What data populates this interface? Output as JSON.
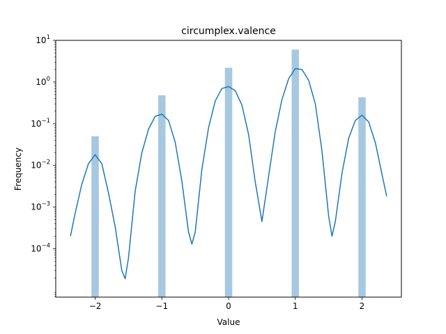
{
  "chart_data": {
    "type": "bar",
    "title": "circumplex.valence",
    "xlabel": "Value",
    "ylabel": "Frequency",
    "yscale": "log",
    "xlim": [
      -2.59,
      2.59
    ],
    "ylim": [
      6.9e-06,
      10
    ],
    "grid": false,
    "x_ticks": [
      -2,
      -1,
      0,
      1,
      2
    ],
    "x_tick_labels": [
      "−2",
      "−1",
      "0",
      "1",
      "2"
    ],
    "y_ticks": [
      {
        "value": 10,
        "base": "10",
        "exp": "1"
      },
      {
        "value": 1,
        "base": "10",
        "exp": "0"
      },
      {
        "value": 0.1,
        "base": "10",
        "exp": "−1"
      },
      {
        "value": 0.01,
        "base": "10",
        "exp": "−2"
      },
      {
        "value": 0.001,
        "base": "10",
        "exp": "−3"
      },
      {
        "value": 0.0001,
        "base": "10",
        "exp": "−4"
      }
    ],
    "bars": [
      {
        "x": -2,
        "value": 0.05
      },
      {
        "x": -1,
        "value": 0.48
      },
      {
        "x": 0,
        "value": 2.2
      },
      {
        "x": 1,
        "value": 6.0
      },
      {
        "x": 2,
        "value": 0.43
      }
    ],
    "bar_width": 0.11,
    "kde_curve": {
      "x": [
        -2.37,
        -2.3,
        -2.2,
        -2.1,
        -2.0,
        -1.9,
        -1.8,
        -1.7,
        -1.6,
        -1.55,
        -1.5,
        -1.4,
        -1.3,
        -1.2,
        -1.1,
        -1.0,
        -0.9,
        -0.8,
        -0.7,
        -0.6,
        -0.55,
        -0.5,
        -0.4,
        -0.3,
        -0.2,
        -0.1,
        0.0,
        0.1,
        0.2,
        0.3,
        0.4,
        0.5,
        0.6,
        0.7,
        0.8,
        0.9,
        1.0,
        1.1,
        1.2,
        1.3,
        1.4,
        1.5,
        1.55,
        1.6,
        1.7,
        1.8,
        1.9,
        2.0,
        2.1,
        2.2,
        2.3,
        2.37
      ],
      "y": [
        0.0002,
        0.0007,
        0.0035,
        0.011,
        0.018,
        0.011,
        0.0022,
        0.00034,
        3e-05,
        1.9e-05,
        6e-05,
        0.0024,
        0.02,
        0.074,
        0.15,
        0.17,
        0.12,
        0.036,
        0.0042,
        0.00025,
        0.00013,
        0.00025,
        0.008,
        0.08,
        0.35,
        0.7,
        0.78,
        0.62,
        0.28,
        0.055,
        0.004,
        0.00045,
        0.0055,
        0.065,
        0.38,
        1.2,
        2.1,
        2.0,
        1.1,
        0.3,
        0.022,
        0.0006,
        0.0002,
        0.00045,
        0.0065,
        0.045,
        0.12,
        0.16,
        0.11,
        0.035,
        0.006,
        0.0018
      ]
    },
    "colors": {
      "bar": "#a6c8e0",
      "line": "#1f77b4"
    }
  }
}
